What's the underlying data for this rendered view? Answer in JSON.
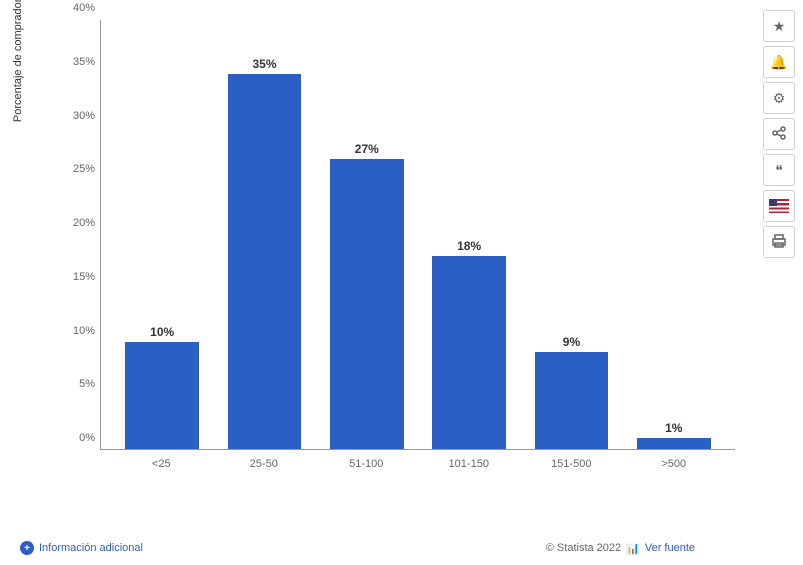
{
  "chart": {
    "type": "bar",
    "y_axis_label": "Porcentaje de compradores online por franjas de gasto",
    "categories": [
      "<25",
      "25-50",
      "51-100",
      "101-150",
      "151-500",
      ">500"
    ],
    "values": [
      10,
      35,
      27,
      18,
      9,
      1
    ],
    "value_labels": [
      "10%",
      "35%",
      "27%",
      "18%",
      "9%",
      "1%"
    ],
    "bar_color": "#2c5fc4",
    "ylim_max": 40,
    "ytick_step": 5,
    "y_ticks": [
      "0%",
      "5%",
      "10%",
      "15%",
      "20%",
      "25%",
      "30%",
      "35%",
      "40%"
    ],
    "background_color": "#ffffff",
    "bar_width_pct": 72,
    "label_fontsize": 11,
    "value_fontsize": 12,
    "axis_color": "#999999",
    "text_color": "#666666"
  },
  "footer": {
    "copyright": "© Statista 2022",
    "additional_info": "Información adicional",
    "view_source": "Ver fuente",
    "logo_text": "statista"
  },
  "toolbar": {
    "favorite": "favorite",
    "notify": "notify",
    "settings": "settings",
    "share": "share",
    "cite": "cite",
    "locale": "locale",
    "print": "print"
  }
}
